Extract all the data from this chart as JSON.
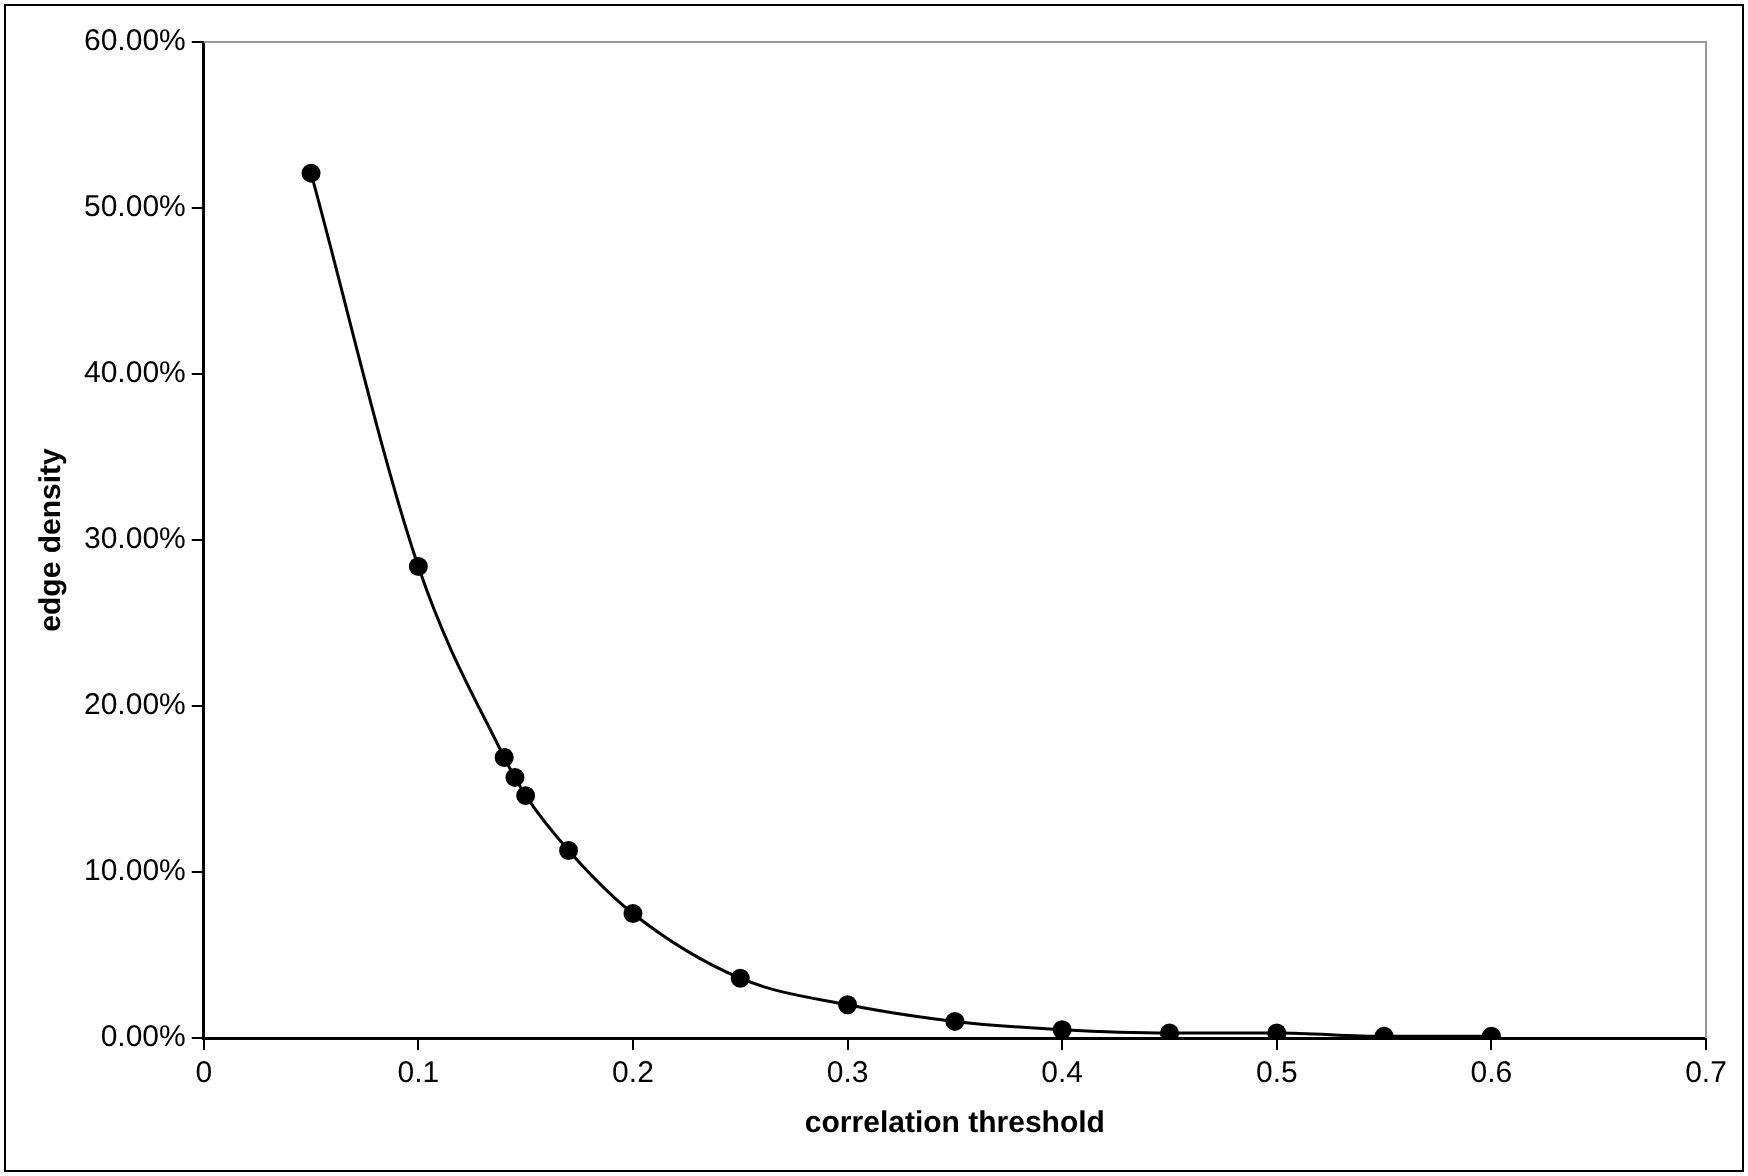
{
  "chart_data": {
    "type": "line",
    "xlabel": "correlation threshold",
    "ylabel": "edge density",
    "x": [
      0.05,
      0.1,
      0.14,
      0.145,
      0.15,
      0.17,
      0.2,
      0.25,
      0.3,
      0.35,
      0.4,
      0.45,
      0.5,
      0.55,
      0.6
    ],
    "series": [
      {
        "color": "#000000",
        "values": [
          52.1,
          28.4,
          16.9,
          15.7,
          14.6,
          11.3,
          7.5,
          3.6,
          2.0,
          1.0,
          0.5,
          0.3,
          0.3,
          0.1,
          0.1
        ]
      }
    ],
    "xlim": [
      0,
      0.7
    ],
    "xticks": [
      0,
      0.1,
      0.2,
      0.3,
      0.4,
      0.5,
      0.6,
      0.7
    ],
    "ylim": [
      0,
      60
    ],
    "yticks": [
      {
        "value": 0,
        "label": "0.00%"
      },
      {
        "value": 10,
        "label": "10.00%"
      },
      {
        "value": 20,
        "label": "20.00%"
      },
      {
        "value": 30,
        "label": "30.00%"
      },
      {
        "value": 40,
        "label": "40.00%"
      },
      {
        "value": 50,
        "label": "50.00%"
      },
      {
        "value": 60,
        "label": "60.00%"
      }
    ],
    "grid": false,
    "legend": false,
    "marker": "circle",
    "line_style": "solid"
  }
}
